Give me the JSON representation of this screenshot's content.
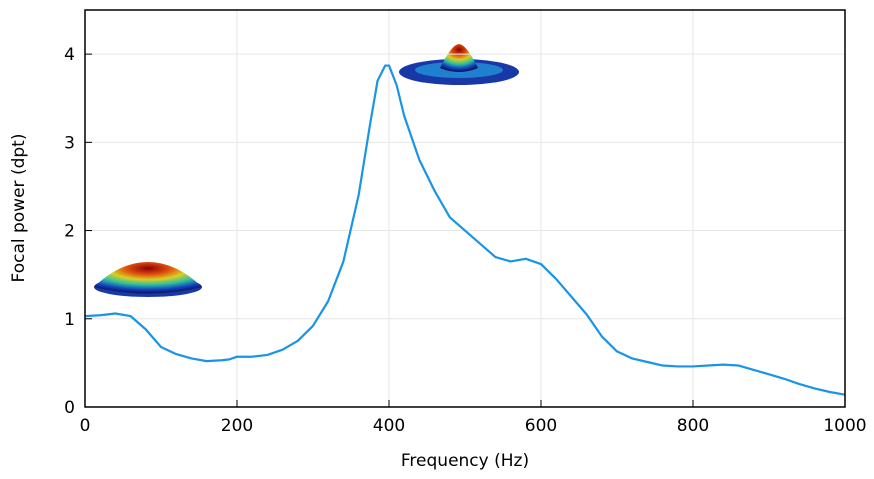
{
  "chart_data": {
    "type": "line",
    "x_label": "Frequency (Hz)",
    "y_label": "Focal power (dpt)",
    "xlim": [
      0,
      1000
    ],
    "ylim": [
      0,
      4.5
    ],
    "xticks": [
      0,
      200,
      400,
      600,
      800,
      1000
    ],
    "yticks": [
      0,
      1,
      2,
      3,
      4
    ],
    "grid": true,
    "series": [
      {
        "color": "#1a94e6",
        "x": [
          0,
          20,
          40,
          60,
          80,
          100,
          120,
          140,
          160,
          180,
          190,
          200,
          220,
          240,
          260,
          280,
          300,
          320,
          340,
          360,
          375,
          385,
          395,
          400,
          410,
          420,
          440,
          460,
          480,
          500,
          520,
          540,
          560,
          580,
          600,
          620,
          640,
          660,
          680,
          700,
          720,
          740,
          760,
          780,
          800,
          820,
          840,
          860,
          880,
          900,
          920,
          940,
          960,
          980,
          1000
        ],
        "values": [
          1.03,
          1.04,
          1.06,
          1.03,
          0.88,
          0.68,
          0.6,
          0.55,
          0.52,
          0.53,
          0.54,
          0.57,
          0.57,
          0.59,
          0.65,
          0.75,
          0.92,
          1.2,
          1.65,
          2.4,
          3.2,
          3.7,
          3.87,
          3.87,
          3.65,
          3.3,
          2.8,
          2.45,
          2.15,
          2.0,
          1.85,
          1.7,
          1.65,
          1.68,
          1.62,
          1.45,
          1.25,
          1.05,
          0.8,
          0.63,
          0.55,
          0.51,
          0.47,
          0.46,
          0.46,
          0.47,
          0.48,
          0.47,
          0.42,
          0.37,
          0.32,
          0.26,
          0.21,
          0.17,
          0.14
        ]
      }
    ]
  }
}
